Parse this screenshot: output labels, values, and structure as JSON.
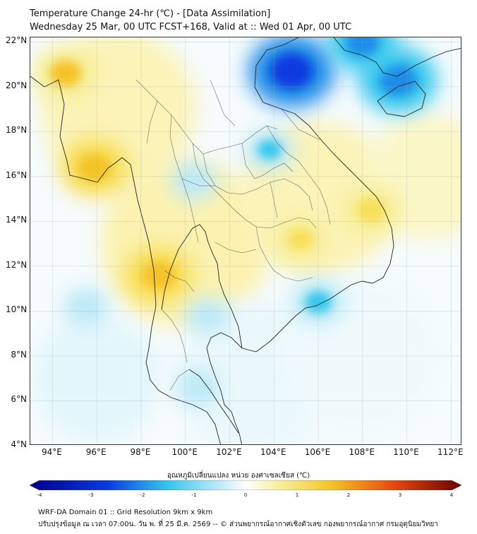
{
  "header": {
    "title": "Temperature Change 24-hr (℃) - [Data Assimilation]",
    "subtitle": "Wednesday 25 Mar, 00 UTC FCST+168, Valid at :: Wed 01 Apr, 00 UTC"
  },
  "map": {
    "lat_labels": [
      "22°N",
      "20°N",
      "18°N",
      "16°N",
      "14°N",
      "12°N",
      "10°N",
      "8°N",
      "6°N",
      "4°N"
    ],
    "lon_labels": [
      "94°E",
      "96°E",
      "98°E",
      "100°E",
      "102°E",
      "104°E",
      "106°E",
      "108°E",
      "110°E",
      "112°E"
    ],
    "extent": {
      "lon_min": 93.0,
      "lon_max": 112.5,
      "lat_min": 4.0,
      "lat_max": 22.2
    },
    "field": "24-hr temperature change (°C)",
    "features": [
      {
        "name": "warm-anomaly-andaman",
        "kind": "warm",
        "lat": 16.4,
        "lon": 95.9,
        "value": 2.0
      },
      {
        "name": "warm-anomaly-myanmar-north",
        "kind": "warm",
        "lat": 20.6,
        "lon": 94.6,
        "value": 1.8
      },
      {
        "name": "warm-anomaly-tenasserim",
        "kind": "warm",
        "lat": 11.6,
        "lon": 98.8,
        "value": 2.0
      },
      {
        "name": "warm-anomaly-cambodia",
        "kind": "warm",
        "lat": 13.2,
        "lon": 105.2,
        "value": 1.3
      },
      {
        "name": "warm-anomaly-vietnam-central",
        "kind": "warm",
        "lat": 14.5,
        "lon": 108.4,
        "value": 1.6
      },
      {
        "name": "cold-anomaly-gulf-tonkin",
        "kind": "cold",
        "lat": 20.7,
        "lon": 104.8,
        "value": -2.8
      },
      {
        "name": "cold-anomaly-hainan",
        "kind": "cold",
        "lat": 20.3,
        "lon": 109.6,
        "value": -2.4
      },
      {
        "name": "cold-anomaly-north-vietnam",
        "kind": "cold",
        "lat": 22.0,
        "lon": 108.0,
        "value": -2.0
      },
      {
        "name": "cold-anomaly-laos",
        "kind": "cold",
        "lat": 17.2,
        "lon": 103.8,
        "value": -1.0
      },
      {
        "name": "cold-anomaly-mekong-delta",
        "kind": "cold",
        "lat": 10.4,
        "lon": 106.0,
        "value": -1.3
      },
      {
        "name": "cold-anomaly-upper-thailand",
        "kind": "cold",
        "lat": 15.8,
        "lon": 100.4,
        "value": -0.8
      },
      {
        "name": "cold-anomaly-andaman-sea",
        "kind": "cold",
        "lat": 10.2,
        "lon": 95.5,
        "value": -0.8
      },
      {
        "name": "cold-anomaly-gulf-thailand",
        "kind": "cold",
        "lat": 9.8,
        "lon": 101.0,
        "value": -0.7
      },
      {
        "name": "cold-anomaly-malay",
        "kind": "cold",
        "lat": 6.6,
        "lon": 100.6,
        "value": -0.7
      }
    ]
  },
  "colorbar": {
    "title": "อุณหภูมิเปลี่ยนแปลง หน่วย องศาเซลเซียส (℃)",
    "min": -4,
    "max": 4,
    "ticks": [
      "-4",
      "-3",
      "-2",
      "-1",
      "0",
      "1",
      "2",
      "3",
      "4"
    ],
    "colors": {
      "deep_cold": "#00008a",
      "cold": "#0a3ae0",
      "cool": "#34c8ee",
      "mild_cool": "#bfeaf7",
      "neutral": "#ffffff",
      "mild_warm": "#f7ef9a",
      "warm": "#f5c326",
      "hot": "#e84a10",
      "deep_hot": "#6a0000"
    }
  },
  "footer": {
    "line1": "WRF-DA Domain 01 :: Grid Resolution 9km x 9km",
    "line2": "ปรับปรุงข้อมูล ณ เวลา 07:00น. วัน พ. ที่ 25 มี.ค. 2569 -- © ส่วนพยากรณ์อากาศเชิงตัวเลข กองพยากรณ์อากาศ กรมอุตุนิยมวิทยา"
  }
}
